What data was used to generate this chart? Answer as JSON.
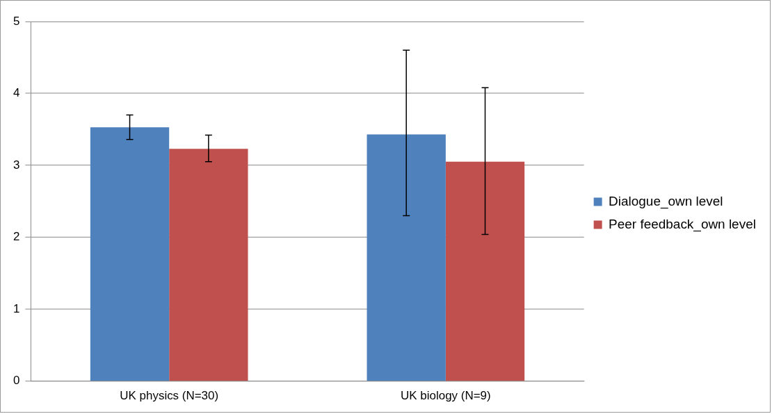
{
  "chart_data": {
    "type": "bar",
    "categories": [
      "UK physics (N=30)",
      "UK biology (N=9)"
    ],
    "series": [
      {
        "name": "Dialogue_own level",
        "color": "#4f81bd",
        "values": [
          3.53,
          3.43
        ],
        "errors": [
          [
            3.36,
            3.7
          ],
          [
            2.3,
            4.6
          ]
        ]
      },
      {
        "name": "Peer feedback_own level",
        "color": "#c0504d",
        "values": [
          3.23,
          3.05
        ],
        "errors": [
          [
            3.05,
            3.42
          ],
          [
            2.04,
            4.08
          ]
        ]
      }
    ],
    "ylim": [
      0,
      5
    ],
    "yticks": [
      0,
      1,
      2,
      3,
      4,
      5
    ],
    "grid": "y",
    "legend": "right"
  }
}
